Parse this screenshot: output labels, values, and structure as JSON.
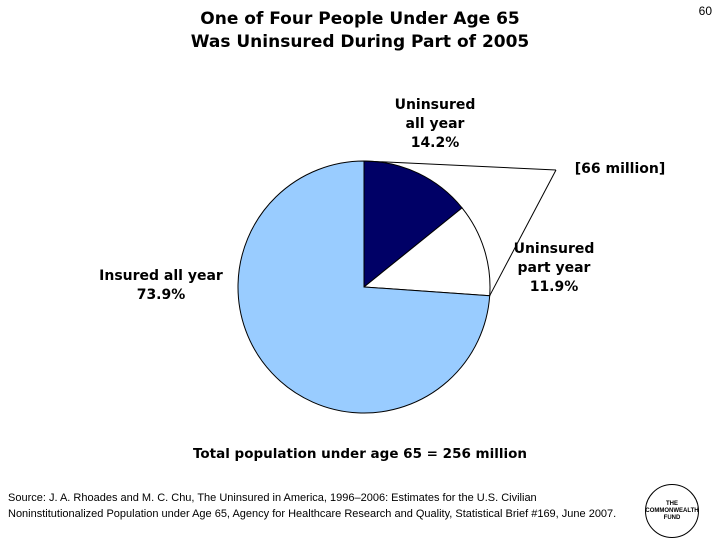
{
  "page_number": "60",
  "title_line1": "One of Four People Under Age 65",
  "title_line2": "Was Uninsured During Part of 2005",
  "chart_data": {
    "type": "pie",
    "slices": [
      {
        "label_lines": [
          "Uninsured",
          "all year"
        ],
        "value": 14.2,
        "value_text": "14.2%",
        "color": "#000066"
      },
      {
        "label_lines": [
          "Uninsured",
          "part year"
        ],
        "value": 11.9,
        "value_text": "11.9%",
        "color": "#ffffff"
      },
      {
        "label_lines": [
          "Insured all year"
        ],
        "value": 73.9,
        "value_text": "73.9%",
        "color": "#99ccff"
      }
    ],
    "callout_text": "[66 million]",
    "total_text": "Total population under age 65 = 256 million"
  },
  "source_text": "Source: J. A. Rhoades and M. C. Chu, The Uninsured in America, 1996–2006: Estimates for the U.S. Civilian Noninstitutionalized Population under Age 65, Agency for Healthcare Research and Quality, Statistical Brief #169, June 2007.",
  "logo": {
    "line1": "THE",
    "line2": "COMMONWEALTH",
    "line3": "FUND"
  }
}
